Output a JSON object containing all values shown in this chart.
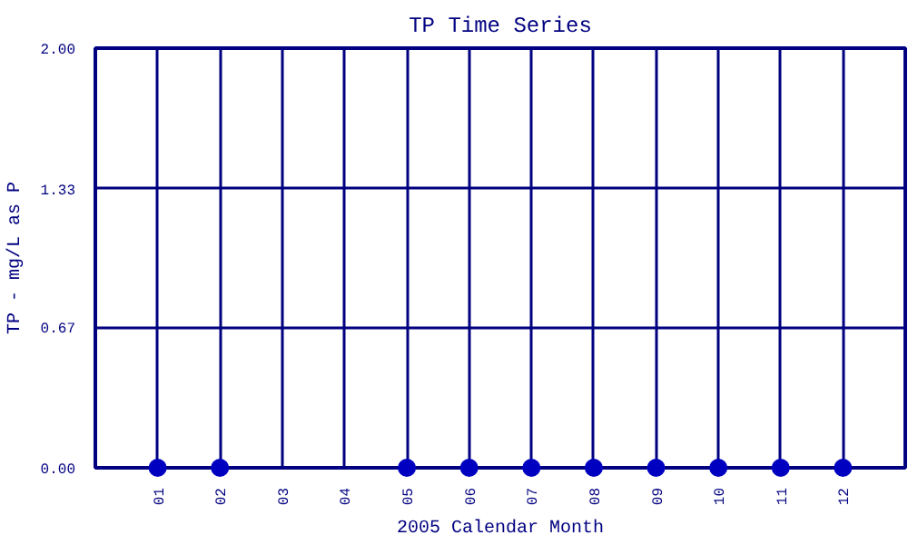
{
  "chart_data": {
    "type": "scatter",
    "title": "TP Time Series",
    "xlabel": "2005 Calendar Month",
    "ylabel": "TP - mg/L as P",
    "categories": [
      "01",
      "02",
      "03",
      "04",
      "05",
      "06",
      "07",
      "08",
      "09",
      "10",
      "11",
      "12"
    ],
    "series": [
      {
        "color": "#0000c0",
        "values": [
          0,
          0,
          null,
          null,
          0,
          0,
          0,
          0,
          0,
          0,
          0,
          0
        ]
      }
    ],
    "ylim": [
      0,
      2
    ],
    "yticks": [
      {
        "value": 0,
        "label": "0.00"
      },
      {
        "value": 0.67,
        "label": "0.67"
      },
      {
        "value": 1.33,
        "label": "1.33"
      },
      {
        "value": 2,
        "label": "2.00"
      }
    ],
    "grid": true,
    "marker": "circle"
  }
}
